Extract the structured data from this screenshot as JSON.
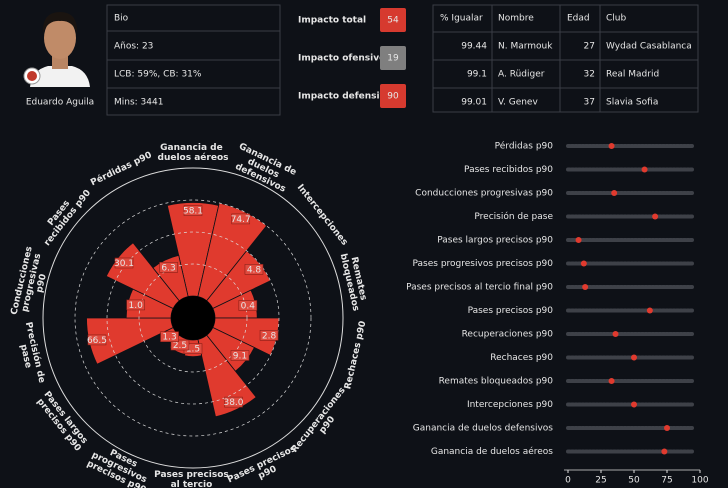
{
  "player": {
    "name": "Eduardo Aguila"
  },
  "bio": {
    "title": "Bio",
    "lines": [
      "Años: 23",
      "LCB: 59%, CB: 31%",
      "Mins: 3441"
    ]
  },
  "impact": [
    {
      "label": "Impacto total",
      "value": 54,
      "color": "#d63a2f"
    },
    {
      "label": "Impacto ofensivo",
      "value": 19,
      "color": "#7f7f7f"
    },
    {
      "label": "Impacto defensivo",
      "value": 90,
      "color": "#d63a2f"
    }
  ],
  "similar": {
    "columns": [
      "% Igualar",
      "Nombre",
      "Edad",
      "Club"
    ],
    "rows": [
      [
        99.44,
        "N. Marmouk",
        27,
        "Wydad Casablanca"
      ],
      [
        99.1,
        "A. Rüdiger",
        32,
        "Real Madrid"
      ],
      [
        99.01,
        "V. Genev",
        37,
        "Slavia Sofia"
      ]
    ]
  },
  "chart_data": [
    {
      "type": "polar_bar",
      "categories": [
        "Ganancia de duelos aéreos",
        "Ganancia de duelos defensivos",
        "Intercepciones",
        "Remates bloqueados",
        "Rechaces p90",
        "Recuperaciones p90",
        "Pases precisos p90",
        "Pases precisos al tercio final",
        "Pases progresivos precisos p90",
        "Pases largos precisos p90",
        "Precisión de pase",
        "Conducciones progresivas p90",
        "Pases recibidos p90",
        "Pérdidas p90"
      ],
      "values": [
        73,
        75,
        50,
        33,
        50,
        36,
        62,
        13,
        12,
        8,
        66,
        35,
        58,
        33
      ],
      "stat_labels": [
        "58.1",
        "74.7",
        "4.8",
        "0.4",
        "2.8",
        "9.1",
        "38.0",
        "1.5",
        "2.5",
        "1.3",
        "66.5",
        "1.0",
        "30.1",
        "6.3"
      ],
      "color": "#e03a2e",
      "ylim": [
        0,
        100
      ],
      "yticks": [
        25,
        50,
        75,
        100
      ]
    },
    {
      "type": "dot",
      "categories": [
        "Pérdidas p90",
        "Pases recibidos p90",
        "Conducciones progresivas p90",
        "Precisión de pase",
        "Pases largos precisos p90",
        "Pases progresivos precisos p90",
        "Pases precisos al tercio final p90",
        "Pases precisos p90",
        "Recuperaciones p90",
        "Rechaces p90",
        "Remates bloqueados p90",
        "Intercepciones p90",
        "Ganancia de duelos defensivos",
        "Ganancia de duelos aéreos"
      ],
      "values": [
        33,
        58,
        35,
        66,
        8,
        12,
        13,
        62,
        36,
        50,
        33,
        50,
        75,
        73
      ],
      "color": "#e03a2e",
      "xlim": [
        0,
        100
      ],
      "xticks": [
        0,
        25,
        50,
        75,
        100
      ]
    }
  ]
}
